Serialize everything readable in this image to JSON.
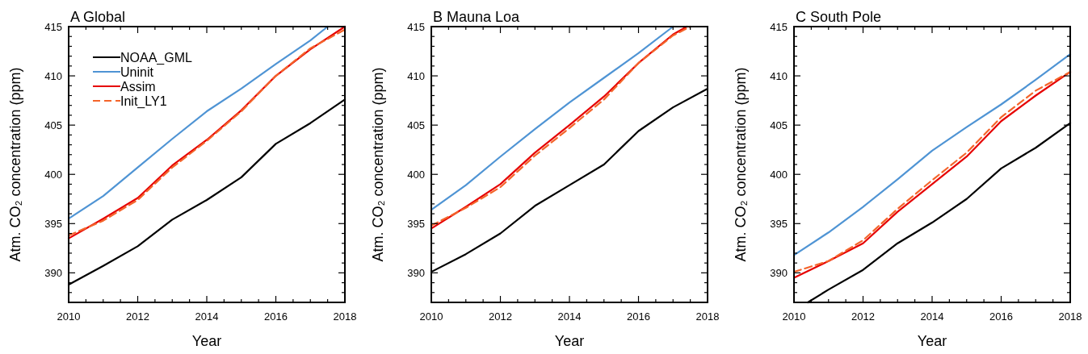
{
  "chart_data": [
    {
      "type": "line",
      "title": "A Global",
      "xlabel": "Year",
      "ylabel": "Atm. CO₂ concentration (ppm)",
      "x": [
        2010,
        2011,
        2012,
        2013,
        2014,
        2015,
        2016,
        2017,
        2018
      ],
      "xlim": [
        2010,
        2018
      ],
      "ylim": [
        387,
        415
      ],
      "xticks": [
        2010,
        {
          "value": 2010.5,
          "label": null
        },
        {
          "value": 2011,
          "label": null
        },
        {
          "value": 2011.5,
          "label": null
        },
        2012,
        {
          "value": 2012.5,
          "label": null
        },
        {
          "value": 2013,
          "label": null
        },
        {
          "value": 2013.5,
          "label": null
        },
        2014,
        {
          "value": 2014.5,
          "label": null
        },
        {
          "value": 2015,
          "label": null
        },
        {
          "value": 2015.5,
          "label": null
        },
        2016,
        {
          "value": 2016.5,
          "label": null
        },
        {
          "value": 2017,
          "label": null
        },
        {
          "value": 2017.5,
          "label": null
        },
        2018
      ],
      "yticks": [
        {
          "value": 388,
          "label": null
        },
        {
          "value": 389,
          "label": null
        },
        390,
        {
          "value": 391,
          "label": null
        },
        {
          "value": 392,
          "label": null
        },
        {
          "value": 393,
          "label": null
        },
        {
          "value": 394,
          "label": null
        },
        395,
        {
          "value": 396,
          "label": null
        },
        {
          "value": 397,
          "label": null
        },
        {
          "value": 398,
          "label": null
        },
        {
          "value": 399,
          "label": null
        },
        400,
        {
          "value": 401,
          "label": null
        },
        {
          "value": 402,
          "label": null
        },
        {
          "value": 403,
          "label": null
        },
        {
          "value": 404,
          "label": null
        },
        405,
        {
          "value": 406,
          "label": null
        },
        {
          "value": 407,
          "label": null
        },
        {
          "value": 408,
          "label": null
        },
        {
          "value": 409,
          "label": null
        },
        410,
        {
          "value": 411,
          "label": null
        },
        {
          "value": 412,
          "label": null
        },
        {
          "value": 413,
          "label": null
        },
        {
          "value": 414,
          "label": null
        },
        415
      ],
      "grid": false,
      "legend": "top left",
      "marker": "none",
      "series": [
        {
          "name": "NOAA_GML",
          "color": "#000000",
          "values": [
            388.8,
            390.7,
            392.7,
            395.4,
            397.4,
            399.7,
            403.1,
            405.2,
            407.6
          ]
        },
        {
          "name": "Uninit",
          "color": "#4f94d4",
          "x": [
            2010,
            2011,
            2012,
            2013,
            2014,
            2015,
            2016,
            2017,
            2017.5
          ],
          "values": [
            395.5,
            397.8,
            400.7,
            403.6,
            406.4,
            408.7,
            411.2,
            413.6,
            415
          ]
        },
        {
          "name": "Assim",
          "color": "#e60000",
          "values": [
            393.5,
            395.5,
            397.6,
            400.9,
            403.5,
            406.5,
            410.0,
            412.7,
            415
          ]
        },
        {
          "name": "Init_LY1",
          "color": "#f4642a",
          "line_style": "dashed",
          "values": [
            393.8,
            395.3,
            397.4,
            400.7,
            403.4,
            406.4,
            410.0,
            412.8,
            414.7
          ]
        }
      ]
    },
    {
      "type": "line",
      "title": "B Mauna Loa",
      "xlabel": "Year",
      "ylabel": "Atm. CO₂ concentration (ppm)",
      "x": [
        2010,
        2011,
        2012,
        2013,
        2014,
        2015,
        2016,
        2017,
        2018
      ],
      "xlim": [
        2010,
        2018
      ],
      "ylim": [
        387,
        415
      ],
      "xticks": [
        2010,
        {
          "value": 2010.5,
          "label": null
        },
        {
          "value": 2011,
          "label": null
        },
        {
          "value": 2011.5,
          "label": null
        },
        2012,
        {
          "value": 2012.5,
          "label": null
        },
        {
          "value": 2013,
          "label": null
        },
        {
          "value": 2013.5,
          "label": null
        },
        2014,
        {
          "value": 2014.5,
          "label": null
        },
        {
          "value": 2015,
          "label": null
        },
        {
          "value": 2015.5,
          "label": null
        },
        2016,
        {
          "value": 2016.5,
          "label": null
        },
        {
          "value": 2017,
          "label": null
        },
        {
          "value": 2017.5,
          "label": null
        },
        2018
      ],
      "yticks": [
        {
          "value": 388,
          "label": null
        },
        {
          "value": 389,
          "label": null
        },
        390,
        {
          "value": 391,
          "label": null
        },
        {
          "value": 392,
          "label": null
        },
        {
          "value": 393,
          "label": null
        },
        {
          "value": 394,
          "label": null
        },
        395,
        {
          "value": 396,
          "label": null
        },
        {
          "value": 397,
          "label": null
        },
        {
          "value": 398,
          "label": null
        },
        {
          "value": 399,
          "label": null
        },
        400,
        {
          "value": 401,
          "label": null
        },
        {
          "value": 402,
          "label": null
        },
        {
          "value": 403,
          "label": null
        },
        {
          "value": 404,
          "label": null
        },
        405,
        {
          "value": 406,
          "label": null
        },
        {
          "value": 407,
          "label": null
        },
        {
          "value": 408,
          "label": null
        },
        {
          "value": 409,
          "label": null
        },
        410,
        {
          "value": 411,
          "label": null
        },
        {
          "value": 412,
          "label": null
        },
        {
          "value": 413,
          "label": null
        },
        {
          "value": 414,
          "label": null
        },
        415
      ],
      "grid": false,
      "marker": "none",
      "series": [
        {
          "color": "#000000",
          "values": [
            390.1,
            391.9,
            394.0,
            396.8,
            398.9,
            401.0,
            404.4,
            406.8,
            408.7
          ]
        },
        {
          "color": "#4f94d4",
          "x": [
            2010,
            2011,
            2012,
            2013,
            2014,
            2015,
            2016,
            2017
          ],
          "values": [
            396.4,
            398.9,
            401.8,
            404.6,
            407.3,
            409.8,
            412.3,
            415
          ]
        },
        {
          "color": "#e60000",
          "x": [
            2010,
            2011,
            2012,
            2013,
            2014,
            2015,
            2016,
            2017,
            2017.4
          ],
          "values": [
            394.5,
            396.7,
            399.0,
            402.2,
            405.0,
            407.9,
            411.3,
            414.2,
            415
          ]
        },
        {
          "color": "#f4642a",
          "line_style": "dashed",
          "x": [
            2010,
            2011,
            2012,
            2013,
            2014,
            2015,
            2016,
            2017,
            2017.5
          ],
          "values": [
            394.8,
            396.6,
            398.7,
            401.9,
            404.7,
            407.6,
            411.3,
            414.1,
            415
          ]
        }
      ]
    },
    {
      "type": "line",
      "title": "C South Pole",
      "xlabel": "Year",
      "ylabel": "Atm. CO₂ concentration (ppm)",
      "x": [
        2010,
        2011,
        2012,
        2013,
        2014,
        2015,
        2016,
        2017,
        2018
      ],
      "xlim": [
        2010,
        2018
      ],
      "ylim": [
        387,
        415
      ],
      "xticks": [
        2010,
        {
          "value": 2010.5,
          "label": null
        },
        {
          "value": 2011,
          "label": null
        },
        {
          "value": 2011.5,
          "label": null
        },
        2012,
        {
          "value": 2012.5,
          "label": null
        },
        {
          "value": 2013,
          "label": null
        },
        {
          "value": 2013.5,
          "label": null
        },
        2014,
        {
          "value": 2014.5,
          "label": null
        },
        {
          "value": 2015,
          "label": null
        },
        {
          "value": 2015.5,
          "label": null
        },
        2016,
        {
          "value": 2016.5,
          "label": null
        },
        {
          "value": 2017,
          "label": null
        },
        {
          "value": 2017.5,
          "label": null
        },
        2018
      ],
      "yticks": [
        {
          "value": 388,
          "label": null
        },
        {
          "value": 389,
          "label": null
        },
        390,
        {
          "value": 391,
          "label": null
        },
        {
          "value": 392,
          "label": null
        },
        {
          "value": 393,
          "label": null
        },
        {
          "value": 394,
          "label": null
        },
        395,
        {
          "value": 396,
          "label": null
        },
        {
          "value": 397,
          "label": null
        },
        {
          "value": 398,
          "label": null
        },
        {
          "value": 399,
          "label": null
        },
        400,
        {
          "value": 401,
          "label": null
        },
        {
          "value": 402,
          "label": null
        },
        {
          "value": 403,
          "label": null
        },
        {
          "value": 404,
          "label": null
        },
        405,
        {
          "value": 406,
          "label": null
        },
        {
          "value": 407,
          "label": null
        },
        {
          "value": 408,
          "label": null
        },
        {
          "value": 409,
          "label": null
        },
        410,
        {
          "value": 411,
          "label": null
        },
        {
          "value": 412,
          "label": null
        },
        {
          "value": 413,
          "label": null
        },
        {
          "value": 414,
          "label": null
        },
        415
      ],
      "grid": false,
      "marker": "none",
      "series": [
        {
          "color": "#000000",
          "x": [
            2010.4,
            2011,
            2012,
            2013,
            2014,
            2015,
            2016,
            2017,
            2018
          ],
          "values": [
            387,
            388.3,
            390.3,
            393.0,
            395.1,
            397.5,
            400.6,
            402.7,
            405.2
          ]
        },
        {
          "color": "#4f94d4",
          "values": [
            391.8,
            394.1,
            396.7,
            399.5,
            402.4,
            404.8,
            407.1,
            409.6,
            412.2
          ]
        },
        {
          "color": "#e60000",
          "values": [
            389.5,
            391.2,
            393.0,
            396.2,
            399.0,
            401.8,
            405.4,
            408.0,
            410.4
          ]
        },
        {
          "color": "#f4642a",
          "line_style": "dashed",
          "values": [
            390.1,
            391.2,
            393.3,
            396.5,
            399.4,
            402.2,
            405.8,
            408.5,
            410.4
          ]
        }
      ]
    }
  ]
}
